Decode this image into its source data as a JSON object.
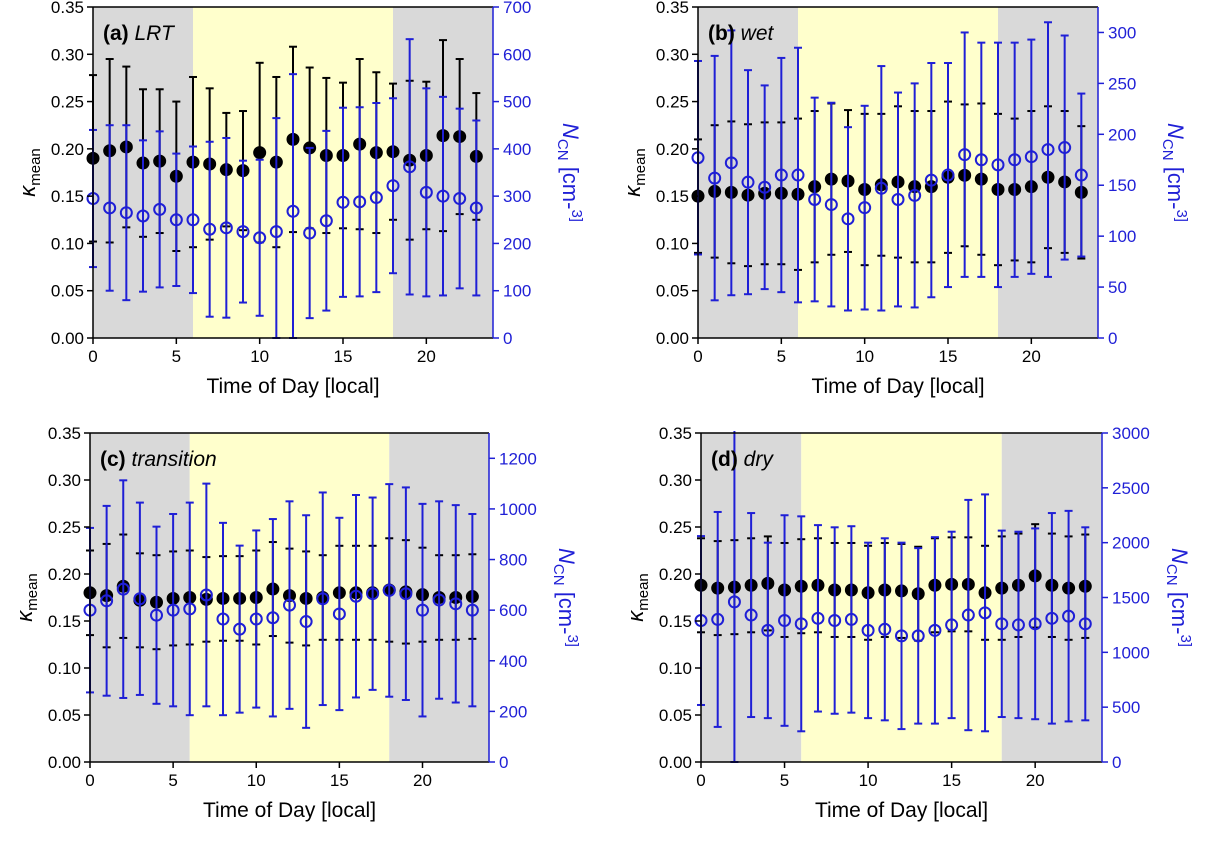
{
  "chart_data": [
    {
      "type": "scatter",
      "panel_label": "(a)",
      "title": "LRT",
      "xlabel": "Time of Day [local]",
      "ylabel_left": "κmean",
      "ylabel_right": "NCN [cm-3]",
      "xlim": [
        0,
        24
      ],
      "xticks": [
        0,
        5,
        10,
        15,
        20
      ],
      "ylim_left": [
        0,
        0.35
      ],
      "yticks_left": [
        0.0,
        0.05,
        0.1,
        0.15,
        0.2,
        0.25,
        0.3,
        0.35
      ],
      "ylim_right": [
        0,
        700
      ],
      "yticks_right": [
        0,
        100,
        200,
        300,
        400,
        500,
        600,
        700
      ],
      "bands": [
        {
          "from": 0,
          "to": 6,
          "color": "#d9d9d9"
        },
        {
          "from": 6,
          "to": 18,
          "color": "#ffffcc"
        },
        {
          "from": 18,
          "to": 24,
          "color": "#d9d9d9"
        }
      ],
      "series": [
        {
          "axis": "left",
          "marker": "filled",
          "color": "#000000",
          "x": [
            0,
            1,
            2,
            3,
            4,
            5,
            6,
            7,
            8,
            9,
            10,
            11,
            12,
            13,
            14,
            15,
            16,
            17,
            18,
            19,
            20,
            21,
            22,
            23
          ],
          "y": [
            0.19,
            0.198,
            0.202,
            0.185,
            0.187,
            0.171,
            0.186,
            0.184,
            0.178,
            0.177,
            0.196,
            0.186,
            0.21,
            0.201,
            0.193,
            0.193,
            0.205,
            0.196,
            0.197,
            0.188,
            0.193,
            0.214,
            0.213,
            0.192
          ],
          "err": [
            0.088,
            0.097,
            0.085,
            0.078,
            0.076,
            0.079,
            0.09,
            0.08,
            0.06,
            0.063,
            0.095,
            0.09,
            0.098,
            0.085,
            0.082,
            0.077,
            0.09,
            0.085,
            0.072,
            0.084,
            0.078,
            0.101,
            0.082,
            0.067
          ]
        },
        {
          "axis": "right",
          "marker": "open",
          "color": "#1f1fd6",
          "x": [
            0,
            1,
            2,
            3,
            4,
            5,
            6,
            7,
            8,
            9,
            10,
            11,
            12,
            13,
            14,
            15,
            16,
            17,
            18,
            19,
            20,
            21,
            22,
            23
          ],
          "y": [
            295,
            275,
            265,
            258,
            272,
            250,
            250,
            230,
            233,
            225,
            212,
            225,
            268,
            222,
            248,
            287,
            288,
            297,
            322,
            362,
            308,
            300,
            295,
            275
          ],
          "err": [
            145,
            175,
            185,
            160,
            165,
            140,
            155,
            185,
            190,
            150,
            165,
            240,
            290,
            180,
            190,
            200,
            200,
            200,
            185,
            270,
            220,
            210,
            190,
            185
          ]
        }
      ]
    },
    {
      "type": "scatter",
      "panel_label": "(b)",
      "title": "wet",
      "xlabel": "Time of Day [local]",
      "ylabel_left": "κmean",
      "ylabel_right": "NCN [cm-3]",
      "xlim": [
        0,
        24
      ],
      "xticks": [
        0,
        5,
        10,
        15,
        20
      ],
      "ylim_left": [
        0,
        0.35
      ],
      "yticks_left": [
        0.0,
        0.05,
        0.1,
        0.15,
        0.2,
        0.25,
        0.3,
        0.35
      ],
      "ylim_right": [
        0,
        325
      ],
      "yticks_right": [
        0,
        50,
        100,
        150,
        200,
        250,
        300
      ],
      "bands": [
        {
          "from": 0,
          "to": 6,
          "color": "#d9d9d9"
        },
        {
          "from": 6,
          "to": 18,
          "color": "#ffffcc"
        },
        {
          "from": 18,
          "to": 24,
          "color": "#d9d9d9"
        }
      ],
      "series": [
        {
          "axis": "left",
          "marker": "filled",
          "color": "#000000",
          "x": [
            0,
            1,
            2,
            3,
            4,
            5,
            6,
            7,
            8,
            9,
            10,
            11,
            12,
            13,
            14,
            15,
            16,
            17,
            18,
            19,
            20,
            21,
            22,
            23
          ],
          "y": [
            0.15,
            0.155,
            0.154,
            0.151,
            0.153,
            0.153,
            0.152,
            0.16,
            0.168,
            0.166,
            0.157,
            0.162,
            0.165,
            0.16,
            0.16,
            0.17,
            0.172,
            0.168,
            0.157,
            0.157,
            0.16,
            0.17,
            0.165,
            0.154
          ],
          "err": [
            0.06,
            0.07,
            0.075,
            0.075,
            0.075,
            0.075,
            0.08,
            0.08,
            0.08,
            0.075,
            0.08,
            0.075,
            0.08,
            0.08,
            0.08,
            0.08,
            0.075,
            0.08,
            0.08,
            0.075,
            0.08,
            0.075,
            0.075,
            0.07
          ]
        },
        {
          "axis": "right",
          "marker": "open",
          "color": "#1f1fd6",
          "x": [
            0,
            1,
            2,
            3,
            4,
            5,
            6,
            7,
            8,
            9,
            10,
            11,
            12,
            13,
            14,
            15,
            16,
            17,
            18,
            19,
            20,
            21,
            22,
            23
          ],
          "y": [
            177,
            157,
            172,
            153,
            148,
            160,
            160,
            136,
            131,
            117,
            128,
            147,
            136,
            140,
            155,
            160,
            180,
            175,
            170,
            175,
            178,
            185,
            187,
            160
          ],
          "err": [
            95,
            120,
            130,
            110,
            100,
            115,
            125,
            100,
            100,
            90,
            100,
            120,
            105,
            110,
            115,
            110,
            120,
            115,
            120,
            115,
            115,
            125,
            110,
            80
          ]
        }
      ]
    },
    {
      "type": "scatter",
      "panel_label": "(c)",
      "title": "transition",
      "xlabel": "Time of Day [local]",
      "ylabel_left": "κmean",
      "ylabel_right": "NCN [cm-3]",
      "xlim": [
        0,
        24
      ],
      "xticks": [
        0,
        5,
        10,
        15,
        20
      ],
      "ylim_left": [
        0,
        0.35
      ],
      "yticks_left": [
        0.0,
        0.05,
        0.1,
        0.15,
        0.2,
        0.25,
        0.3,
        0.35
      ],
      "ylim_right": [
        0,
        1300
      ],
      "yticks_right": [
        0,
        200,
        400,
        600,
        800,
        1000,
        1200
      ],
      "bands": [
        {
          "from": 0,
          "to": 6,
          "color": "#d9d9d9"
        },
        {
          "from": 6,
          "to": 18,
          "color": "#ffffcc"
        },
        {
          "from": 18,
          "to": 24,
          "color": "#d9d9d9"
        }
      ],
      "series": [
        {
          "axis": "left",
          "marker": "filled",
          "color": "#000000",
          "x": [
            0,
            1,
            2,
            3,
            4,
            5,
            6,
            7,
            8,
            9,
            10,
            11,
            12,
            13,
            14,
            15,
            16,
            17,
            18,
            19,
            20,
            21,
            22,
            23
          ],
          "y": [
            0.18,
            0.177,
            0.187,
            0.172,
            0.17,
            0.174,
            0.175,
            0.173,
            0.174,
            0.174,
            0.175,
            0.184,
            0.177,
            0.174,
            0.175,
            0.18,
            0.18,
            0.18,
            0.183,
            0.181,
            0.178,
            0.175,
            0.175,
            0.176
          ],
          "err": [
            0.045,
            0.055,
            0.055,
            0.05,
            0.05,
            0.05,
            0.05,
            0.045,
            0.045,
            0.045,
            0.05,
            0.05,
            0.05,
            0.05,
            0.045,
            0.05,
            0.05,
            0.05,
            0.055,
            0.055,
            0.05,
            0.045,
            0.045,
            0.045
          ]
        },
        {
          "axis": "right",
          "marker": "open",
          "color": "#1f1fd6",
          "x": [
            0,
            1,
            2,
            3,
            4,
            5,
            6,
            7,
            8,
            9,
            10,
            11,
            12,
            13,
            14,
            15,
            16,
            17,
            18,
            19,
            20,
            21,
            22,
            23
          ],
          "y": [
            600,
            637,
            683,
            645,
            580,
            600,
            605,
            660,
            565,
            525,
            565,
            570,
            620,
            555,
            645,
            585,
            655,
            665,
            678,
            665,
            600,
            640,
            625,
            600
          ],
          "err": [
            325,
            375,
            430,
            380,
            350,
            380,
            420,
            440,
            380,
            330,
            350,
            390,
            410,
            420,
            420,
            380,
            400,
            380,
            420,
            420,
            420,
            390,
            390,
            380
          ]
        }
      ]
    },
    {
      "type": "scatter",
      "panel_label": "(d)",
      "title": "dry",
      "xlabel": "Time of Day [local]",
      "ylabel_left": "κmean",
      "ylabel_right": "NCN [cm-3]",
      "xlim": [
        0,
        24
      ],
      "xticks": [
        0,
        5,
        10,
        15,
        20
      ],
      "ylim_left": [
        0,
        0.35
      ],
      "yticks_left": [
        0.0,
        0.05,
        0.1,
        0.15,
        0.2,
        0.25,
        0.3,
        0.35
      ],
      "ylim_right": [
        0,
        3000
      ],
      "yticks_right": [
        0,
        500,
        1000,
        1500,
        2000,
        2500,
        3000
      ],
      "bands": [
        {
          "from": 0,
          "to": 6,
          "color": "#d9d9d9"
        },
        {
          "from": 6,
          "to": 18,
          "color": "#ffffcc"
        },
        {
          "from": 18,
          "to": 24,
          "color": "#d9d9d9"
        }
      ],
      "series": [
        {
          "axis": "left",
          "marker": "filled",
          "color": "#000000",
          "x": [
            0,
            1,
            2,
            3,
            4,
            5,
            6,
            7,
            8,
            9,
            10,
            11,
            12,
            13,
            14,
            15,
            16,
            17,
            18,
            19,
            20,
            21,
            22,
            23
          ],
          "y": [
            0.188,
            0.185,
            0.186,
            0.188,
            0.19,
            0.183,
            0.187,
            0.188,
            0.183,
            0.183,
            0.18,
            0.183,
            0.182,
            0.179,
            0.188,
            0.189,
            0.189,
            0.18,
            0.185,
            0.188,
            0.198,
            0.188,
            0.185,
            0.187
          ],
          "err": [
            0.05,
            0.05,
            0.05,
            0.05,
            0.05,
            0.05,
            0.05,
            0.05,
            0.05,
            0.05,
            0.05,
            0.05,
            0.05,
            0.05,
            0.05,
            0.05,
            0.05,
            0.05,
            0.055,
            0.055,
            0.055,
            0.055,
            0.055,
            0.055
          ]
        },
        {
          "axis": "right",
          "marker": "open",
          "color": "#1f1fd6",
          "x": [
            0,
            1,
            2,
            3,
            4,
            5,
            6,
            7,
            8,
            9,
            10,
            11,
            12,
            13,
            14,
            15,
            16,
            17,
            18,
            19,
            20,
            21,
            22,
            23
          ],
          "y": [
            1290,
            1300,
            1460,
            1340,
            1200,
            1290,
            1260,
            1310,
            1290,
            1300,
            1200,
            1210,
            1150,
            1150,
            1200,
            1250,
            1340,
            1360,
            1260,
            1250,
            1260,
            1310,
            1330,
            1260
          ],
          "err": [
            770,
            980,
            1650,
            930,
            800,
            960,
            980,
            850,
            850,
            850,
            800,
            830,
            850,
            800,
            850,
            850,
            1050,
            1080,
            850,
            850,
            870,
            960,
            960,
            880
          ]
        }
      ]
    }
  ]
}
